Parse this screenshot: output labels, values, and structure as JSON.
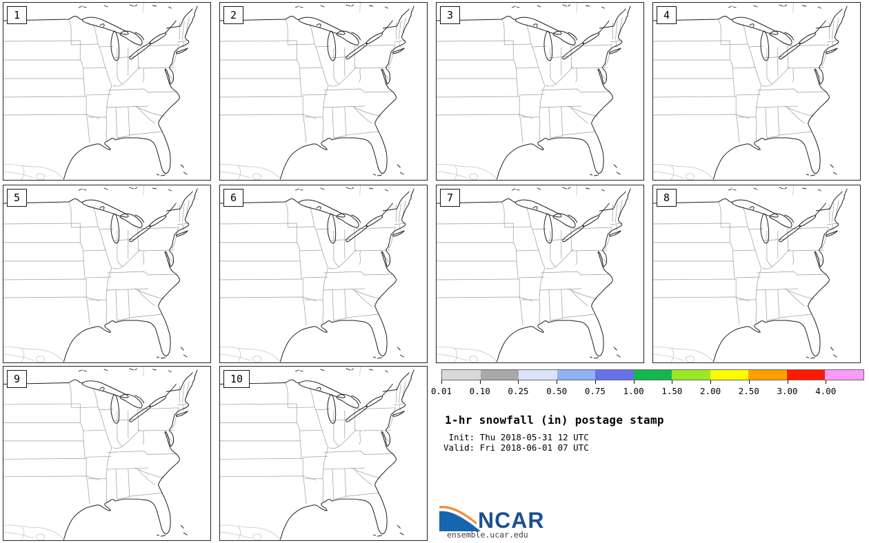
{
  "title_block": {
    "title": "1-hr snowfall (in) postage stamp",
    "init_line": " Init: Thu 2018-05-31 12 UTC",
    "valid_line": "Valid: Fri 2018-06-01 07 UTC"
  },
  "panels": [
    {
      "label": "1"
    },
    {
      "label": "2"
    },
    {
      "label": "3"
    },
    {
      "label": "4"
    },
    {
      "label": "5"
    },
    {
      "label": "6"
    },
    {
      "label": "7"
    },
    {
      "label": "8"
    },
    {
      "label": "9"
    },
    {
      "label": "10"
    }
  ],
  "legend": {
    "units": "in",
    "tick_labels": [
      "0.01",
      "0.10",
      "0.25",
      "0.50",
      "0.75",
      "1.00",
      "1.50",
      "2.00",
      "2.50",
      "3.00",
      "4.00"
    ],
    "segment_colors": [
      "#d9d9d9",
      "#a8a8a8",
      "#dbe3fa",
      "#8fb2f5",
      "#6672e8",
      "#12b84d",
      "#9ae827",
      "#fdfd00",
      "#fda000",
      "#fd1b00",
      "#fb9bf9"
    ]
  },
  "branding": {
    "logo_text": "NCAR",
    "site_url": "ensemble.ucar.edu",
    "logo_blue": "#1565b0",
    "logo_orange": "#f08b33",
    "logo_text_color": "#1d4f91"
  }
}
